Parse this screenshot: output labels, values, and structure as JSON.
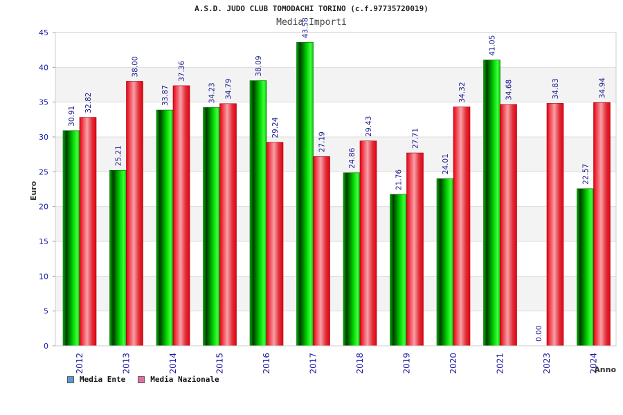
{
  "title": "A.S.D. JUDO CLUB TOMODACHI TORINO (c.f.97735720019)",
  "subtitle": "Media Importi",
  "chart_data": {
    "type": "bar",
    "categories": [
      "2012",
      "2013",
      "2014",
      "2015",
      "2016",
      "2017",
      "2018",
      "2019",
      "2020",
      "2021",
      "2023",
      "2024"
    ],
    "series": [
      {
        "name": "Media Ente",
        "values": [
          30.91,
          25.21,
          33.87,
          34.23,
          38.09,
          43.58,
          24.86,
          21.76,
          24.01,
          41.05,
          0.0,
          22.57
        ],
        "labels": [
          "30.91",
          "25.21",
          "33.87",
          "34.23",
          "38.09",
          "43.58",
          "24.86",
          "21.76",
          "24.01",
          "41.05",
          "0.00",
          "22.57"
        ],
        "color": "#00c800",
        "legend_color": "#5b9bd5"
      },
      {
        "name": "Media Nazionale",
        "values": [
          32.82,
          38.0,
          37.36,
          34.79,
          29.24,
          27.19,
          29.43,
          27.71,
          34.32,
          34.68,
          34.83,
          34.94
        ],
        "labels": [
          "32.82",
          "38.00",
          "37.36",
          "34.79",
          "29.24",
          "27.19",
          "29.43",
          "27.71",
          "34.32",
          "34.68",
          "34.83",
          "34.94"
        ],
        "color": "#e8101a",
        "legend_color": "#e070a0"
      }
    ],
    "xlabel": "Anno",
    "ylabel": "Euro",
    "ylim": [
      0,
      45
    ],
    "yticks": [
      0,
      5,
      10,
      15,
      20,
      25,
      30,
      35,
      40,
      45
    ],
    "grid": true,
    "legend_position": "bottom-left"
  }
}
